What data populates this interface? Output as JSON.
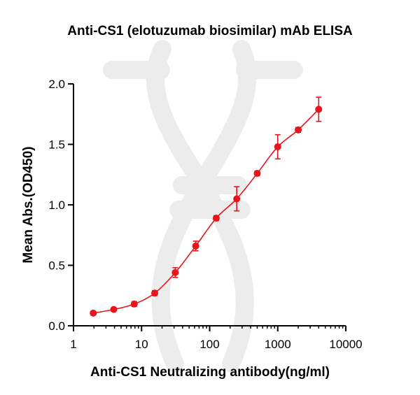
{
  "chart_data": {
    "type": "scatter",
    "title": "Anti-CS1 (elotuzumab biosimilar) mAb ELISA",
    "xlabel": "Anti-CS1 Neutralizing antibody(ng/ml)",
    "ylabel": "Mean Abs.(OD450)",
    "x_scale": "log",
    "xlim": [
      1,
      10000
    ],
    "ylim": [
      0,
      2.0
    ],
    "x_ticks": [
      1,
      10,
      100,
      1000,
      10000
    ],
    "x_tick_labels": [
      "1",
      "10",
      "100",
      "1000",
      "10000"
    ],
    "y_ticks": [
      0,
      0.5,
      1.0,
      1.5,
      2.0
    ],
    "y_tick_labels": [
      "0.0",
      "0.5",
      "1.0",
      "1.5",
      "2.0"
    ],
    "grid": false,
    "color": "#e8141c",
    "series": [
      {
        "x": [
          1.95,
          3.9,
          7.8,
          15.6,
          31.25,
          62.5,
          125,
          250,
          500,
          1000,
          2000,
          4000
        ],
        "y": [
          0.105,
          0.135,
          0.18,
          0.27,
          0.44,
          0.66,
          0.89,
          1.05,
          1.26,
          1.48,
          1.62,
          1.79
        ],
        "error": [
          0.01,
          0.01,
          0.02,
          0.02,
          0.04,
          0.04,
          0.02,
          0.1,
          0.02,
          0.1,
          0.02,
          0.1
        ],
        "fit": "4PL"
      }
    ]
  }
}
